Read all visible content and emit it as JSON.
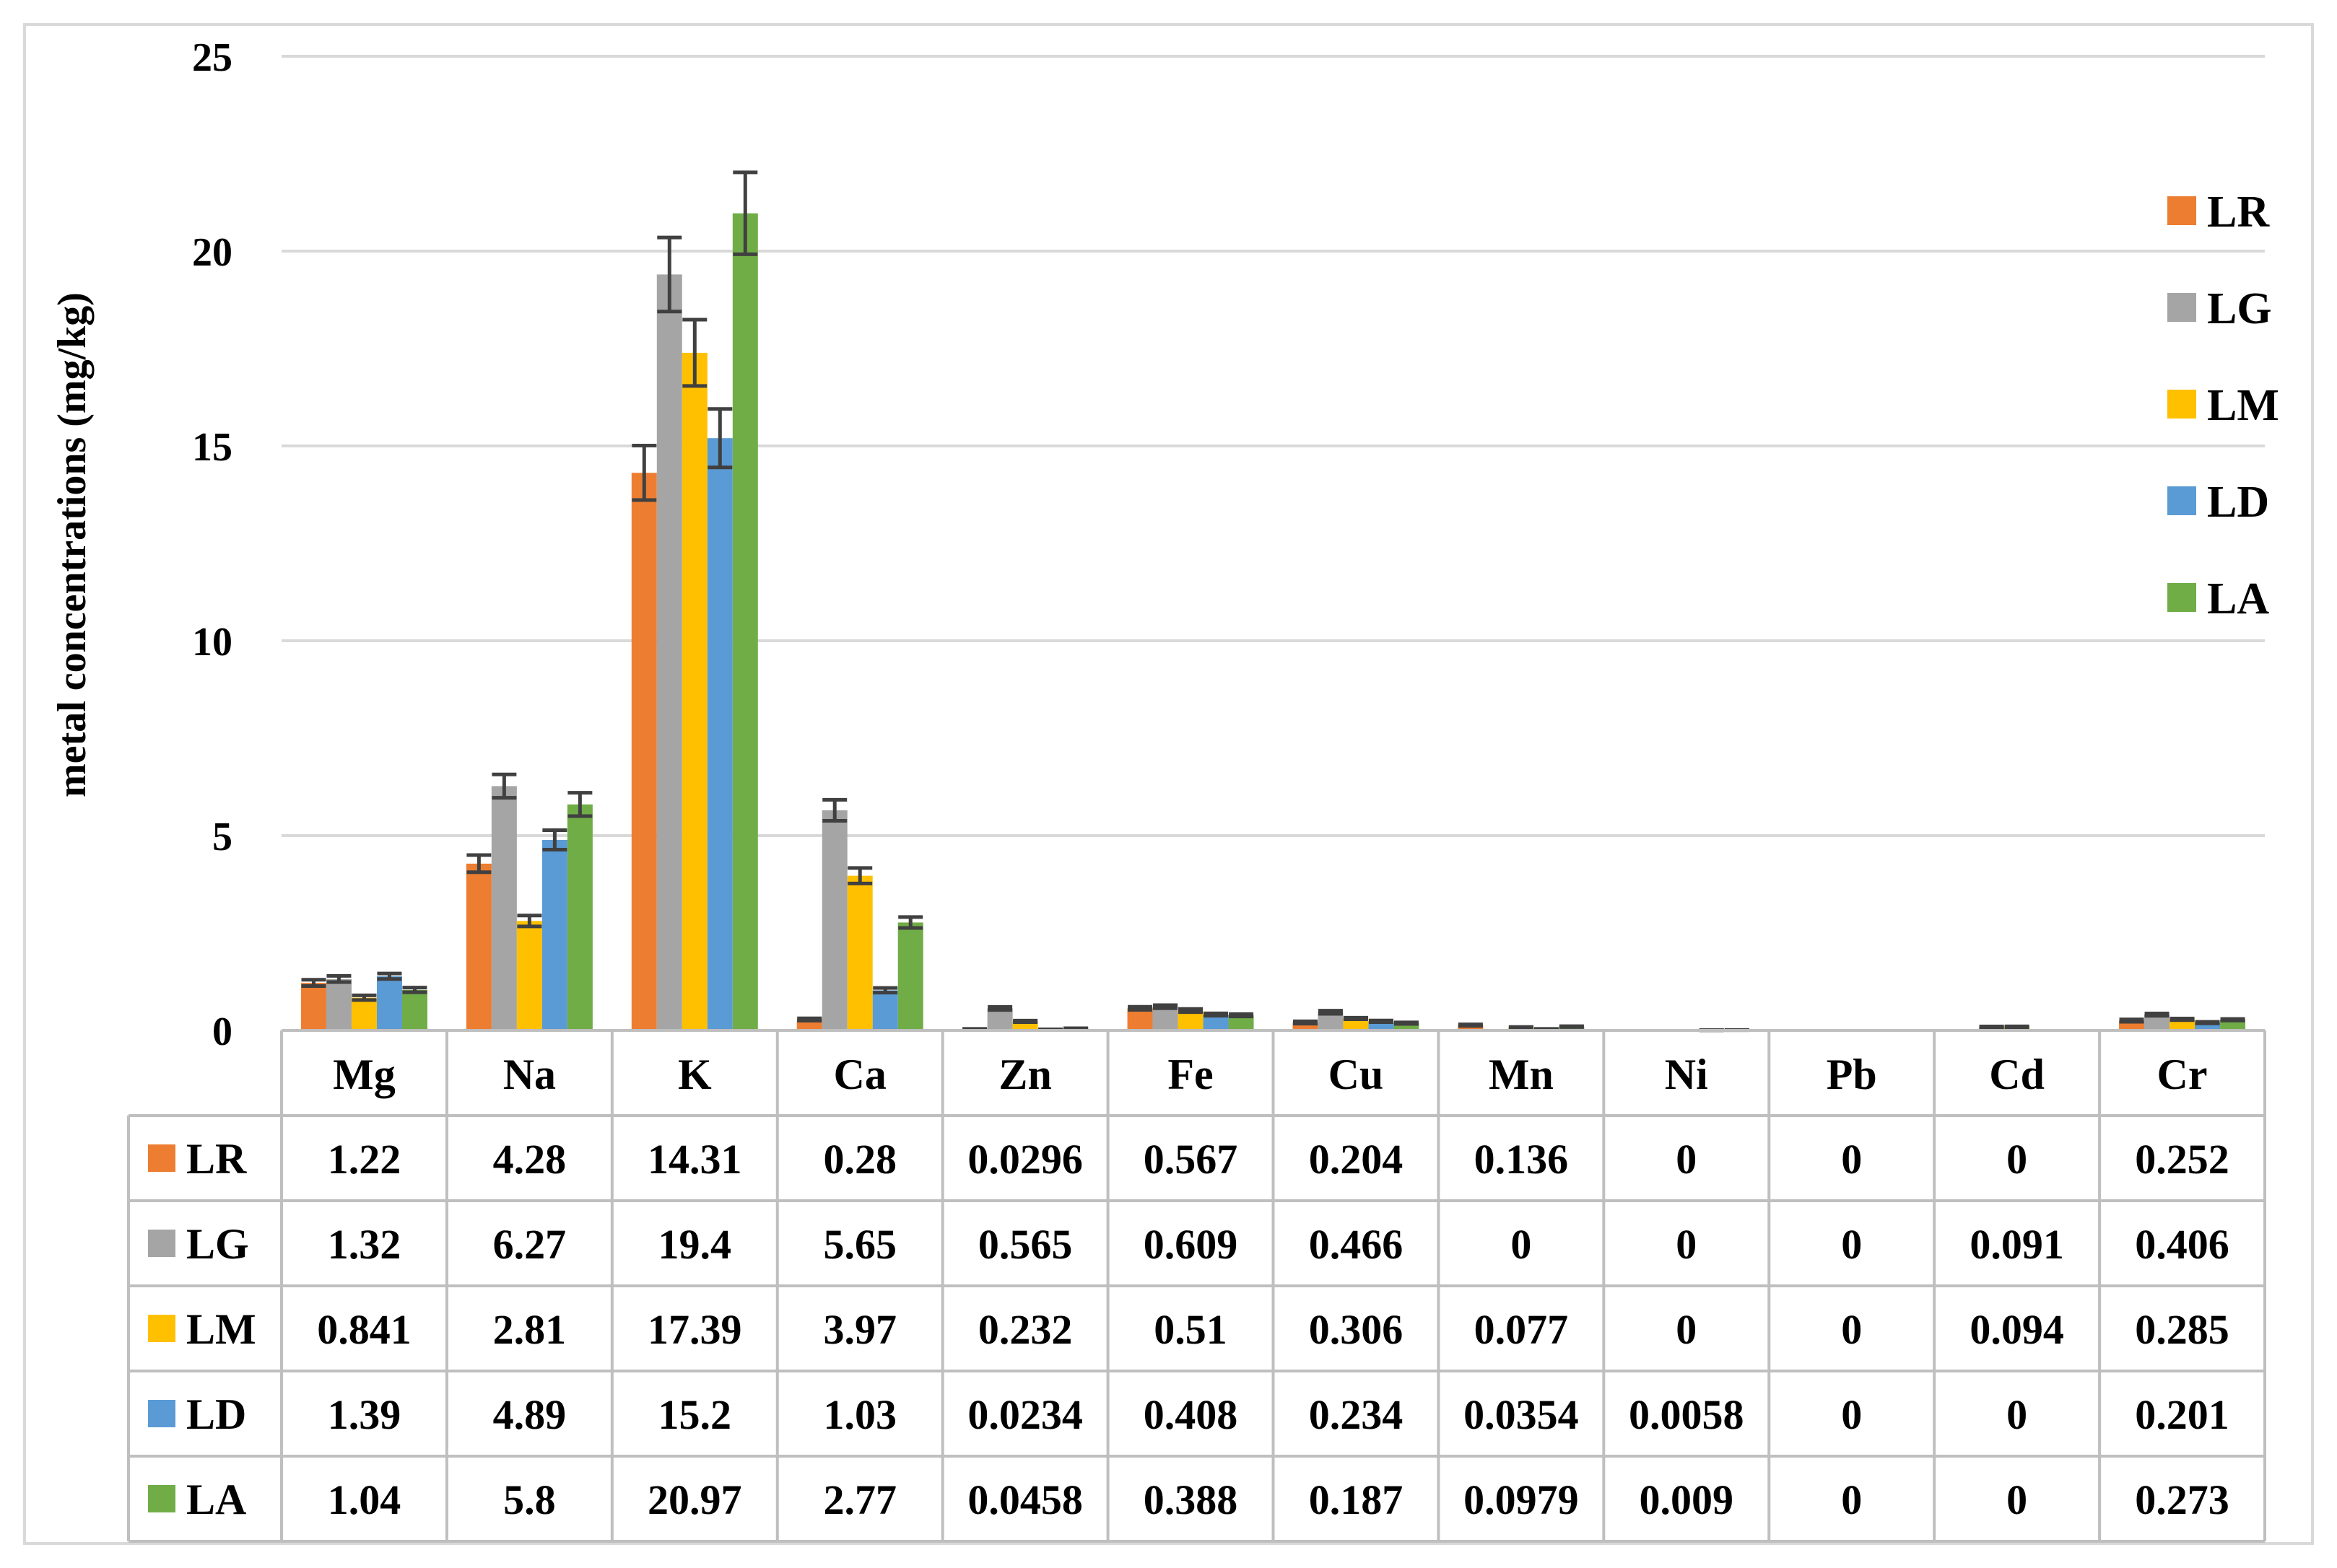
{
  "chart_data": {
    "type": "bar",
    "title": "",
    "xlabel": "",
    "ylabel": "metal concentrations (mg/kg)",
    "ylim": [
      0,
      25
    ],
    "yticks": [
      0,
      5,
      10,
      15,
      20,
      25
    ],
    "y_tick_labels": [
      "0",
      "5",
      "10",
      "15",
      "20",
      "25"
    ],
    "grid": true,
    "legend_position": "right",
    "categories": [
      "Mg",
      "Na",
      "K",
      "Ca",
      "Zn",
      "Fe",
      "Cu",
      "Mn",
      "Ni",
      "Pb",
      "Cd",
      "Cr"
    ],
    "series": [
      {
        "name": "LR",
        "color": "#ED7D31",
        "values": [
          1.22,
          4.28,
          14.31,
          0.28,
          0.0296,
          0.567,
          0.204,
          0.136,
          0,
          0,
          0,
          0.252
        ],
        "labels": [
          "1.22",
          "4.28",
          "14.31",
          "0.28",
          "0.0296",
          "0.567",
          "0.204",
          "0.136",
          "0",
          "0",
          "0",
          "0.252"
        ],
        "errors": [
          0.08,
          0.22,
          0.7,
          0.03,
          0.01,
          0.04,
          0.03,
          0.02,
          0,
          0,
          0,
          0.03
        ]
      },
      {
        "name": "LG",
        "color": "#A5A5A5",
        "values": [
          1.32,
          6.27,
          19.4,
          5.65,
          0.565,
          0.609,
          0.466,
          0,
          0,
          0,
          0.091,
          0.406
        ],
        "labels": [
          "1.32",
          "6.27",
          "19.4",
          "5.65",
          "0.565",
          "0.609",
          "0.466",
          "0",
          "0",
          "0",
          "0.091",
          "0.406"
        ],
        "errors": [
          0.08,
          0.3,
          0.95,
          0.27,
          0.04,
          0.04,
          0.04,
          0,
          0,
          0,
          0.01,
          0.03
        ]
      },
      {
        "name": "LM",
        "color": "#FFC000",
        "values": [
          0.841,
          2.81,
          17.39,
          3.97,
          0.232,
          0.51,
          0.306,
          0.077,
          0,
          0,
          0.094,
          0.285
        ],
        "labels": [
          "0.841",
          "2.81",
          "17.39",
          "3.97",
          "0.232",
          "0.51",
          "0.306",
          "0.077",
          "0",
          "0",
          "0.094",
          "0.285"
        ],
        "errors": [
          0.06,
          0.14,
          0.85,
          0.2,
          0.02,
          0.04,
          0.02,
          0.01,
          0,
          0,
          0.01,
          0.02
        ]
      },
      {
        "name": "LD",
        "color": "#5B9BD5",
        "values": [
          1.39,
          4.89,
          15.2,
          1.03,
          0.0234,
          0.408,
          0.234,
          0.0354,
          0.0058,
          0,
          0,
          0.201
        ],
        "labels": [
          "1.39",
          "4.89",
          "15.2",
          "1.03",
          "0.0234",
          "0.408",
          "0.234",
          "0.0354",
          "0.0058",
          "0",
          "0",
          "0.201"
        ],
        "errors": [
          0.07,
          0.25,
          0.75,
          0.06,
          0.005,
          0.03,
          0.02,
          0.005,
          0.002,
          0,
          0,
          0.02
        ]
      },
      {
        "name": "LA",
        "color": "#70AD47",
        "values": [
          1.04,
          5.8,
          20.97,
          2.77,
          0.0458,
          0.388,
          0.187,
          0.0979,
          0.009,
          0,
          0,
          0.273
        ],
        "labels": [
          "1.04",
          "5.8",
          "20.97",
          "2.77",
          "0.0458",
          "0.388",
          "0.187",
          "0.0979",
          "0.009",
          "0",
          "0",
          "0.273"
        ],
        "errors": [
          0.06,
          0.3,
          1.05,
          0.14,
          0.01,
          0.03,
          0.02,
          0.01,
          0.003,
          0,
          0,
          0.02
        ]
      }
    ]
  },
  "colors": {
    "gridline": "#D9D9D9",
    "error_bar": "#404040",
    "table_border": "#BFBFBF"
  }
}
